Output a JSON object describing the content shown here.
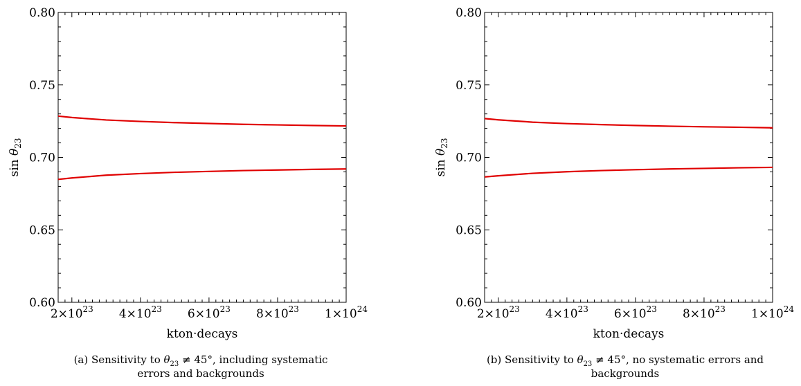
{
  "chart_data": [
    {
      "type": "line",
      "panel": "a",
      "xlabel": "kton·decays",
      "ylabel": "sin θ23",
      "xlim": [
        1.6e+23,
        1e+24
      ],
      "ylim": [
        0.6,
        0.8
      ],
      "xticks": [
        {
          "value": 2e+23,
          "mantissa": "2",
          "exponent": "23"
        },
        {
          "value": 4e+23,
          "mantissa": "4",
          "exponent": "23"
        },
        {
          "value": 6e+23,
          "mantissa": "6",
          "exponent": "23"
        },
        {
          "value": 8e+23,
          "mantissa": "8",
          "exponent": "23"
        },
        {
          "value": 1e+24,
          "mantissa": "1",
          "exponent": "24"
        }
      ],
      "yticks": [
        {
          "value": 0.6,
          "label": "0.60"
        },
        {
          "value": 0.65,
          "label": "0.65"
        },
        {
          "value": 0.7,
          "label": "0.70"
        },
        {
          "value": 0.75,
          "label": "0.75"
        },
        {
          "value": 0.8,
          "label": "0.80"
        }
      ],
      "grid": false,
      "color": "#e00000",
      "series": [
        {
          "x": [
            1.6e+23,
            2e+23,
            3e+23,
            4e+23,
            5e+23,
            6e+23,
            7e+23,
            8e+23,
            9e+23,
            1e+24
          ],
          "values": [
            0.7285,
            0.7275,
            0.7258,
            0.7248,
            0.724,
            0.7234,
            0.7228,
            0.7224,
            0.722,
            0.7217
          ]
        },
        {
          "x": [
            1.6e+23,
            2e+23,
            3e+23,
            4e+23,
            5e+23,
            6e+23,
            7e+23,
            8e+23,
            9e+23,
            1e+24
          ],
          "values": [
            0.6848,
            0.6858,
            0.6877,
            0.6888,
            0.6897,
            0.6903,
            0.6909,
            0.6913,
            0.6917,
            0.692
          ]
        }
      ],
      "caption": {
        "line1_pre": "(a) Sensitivity to ",
        "line1_post": ", including systematic",
        "line2": "errors and backgrounds"
      }
    },
    {
      "type": "line",
      "panel": "b",
      "xlabel": "kton·decays",
      "ylabel": "sin θ23",
      "xlim": [
        1.6e+23,
        1e+24
      ],
      "ylim": [
        0.6,
        0.8
      ],
      "xticks": [
        {
          "value": 2e+23,
          "mantissa": "2",
          "exponent": "23"
        },
        {
          "value": 4e+23,
          "mantissa": "4",
          "exponent": "23"
        },
        {
          "value": 6e+23,
          "mantissa": "6",
          "exponent": "23"
        },
        {
          "value": 8e+23,
          "mantissa": "8",
          "exponent": "23"
        },
        {
          "value": 1e+24,
          "mantissa": "1",
          "exponent": "24"
        }
      ],
      "yticks": [
        {
          "value": 0.6,
          "label": "0.60"
        },
        {
          "value": 0.65,
          "label": "0.65"
        },
        {
          "value": 0.7,
          "label": "0.70"
        },
        {
          "value": 0.75,
          "label": "0.75"
        },
        {
          "value": 0.8,
          "label": "0.80"
        }
      ],
      "grid": false,
      "color": "#e00000",
      "series": [
        {
          "x": [
            1.6e+23,
            2e+23,
            3e+23,
            4e+23,
            5e+23,
            6e+23,
            7e+23,
            8e+23,
            9e+23,
            1e+24
          ],
          "values": [
            0.7268,
            0.7259,
            0.7243,
            0.7233,
            0.7226,
            0.722,
            0.7215,
            0.7211,
            0.7208,
            0.7204
          ]
        },
        {
          "x": [
            1.6e+23,
            2e+23,
            3e+23,
            4e+23,
            5e+23,
            6e+23,
            7e+23,
            8e+23,
            9e+23,
            1e+24
          ],
          "values": [
            0.6865,
            0.6873,
            0.689,
            0.6901,
            0.6909,
            0.6915,
            0.692,
            0.6924,
            0.6928,
            0.6931
          ]
        }
      ],
      "caption": {
        "line1_pre": "(b) Sensitivity to ",
        "line1_post": ", no systematic errors and",
        "line2": "backgrounds"
      }
    }
  ],
  "caption_math": {
    "theta": "θ",
    "sub": "23",
    "rel": " ≠ 45°"
  },
  "times_sign": "×10"
}
